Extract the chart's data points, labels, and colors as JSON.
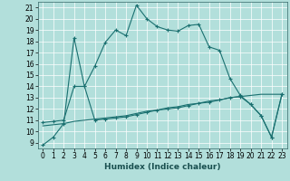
{
  "xlabel": "Humidex (Indice chaleur)",
  "background_color": "#b2dfdb",
  "grid_color": "#ffffff",
  "line_color": "#1a7070",
  "xlim": [
    -0.5,
    23.5
  ],
  "ylim": [
    8.5,
    21.5
  ],
  "x_ticks": [
    0,
    1,
    2,
    3,
    4,
    5,
    6,
    7,
    8,
    9,
    10,
    11,
    12,
    13,
    14,
    15,
    16,
    17,
    18,
    19,
    20,
    21,
    22,
    23
  ],
  "y_ticks": [
    9,
    10,
    11,
    12,
    13,
    14,
    15,
    16,
    17,
    18,
    19,
    20,
    21
  ],
  "line1_y": [
    8.8,
    9.5,
    10.7,
    18.3,
    14.0,
    15.8,
    17.9,
    19.0,
    18.5,
    21.2,
    20.0,
    19.3,
    19.0,
    18.9,
    19.4,
    19.5,
    17.5,
    17.2,
    14.7,
    13.2,
    12.4,
    11.4,
    9.5,
    13.3
  ],
  "line2_y": [
    10.8,
    10.9,
    11.0,
    14.0,
    14.0,
    11.0,
    11.1,
    11.2,
    11.3,
    11.5,
    11.7,
    11.9,
    12.0,
    12.1,
    12.3,
    12.5,
    12.6,
    12.8,
    13.0,
    13.1,
    12.4,
    11.4,
    9.5,
    13.3
  ],
  "line3_y": [
    10.5,
    10.6,
    10.7,
    10.9,
    11.0,
    11.1,
    11.2,
    11.3,
    11.4,
    11.6,
    11.8,
    11.9,
    12.1,
    12.2,
    12.4,
    12.5,
    12.7,
    12.8,
    13.0,
    13.1,
    13.2,
    13.3,
    13.3,
    13.3
  ],
  "tick_fontsize": 5.5,
  "label_fontsize": 6.5
}
